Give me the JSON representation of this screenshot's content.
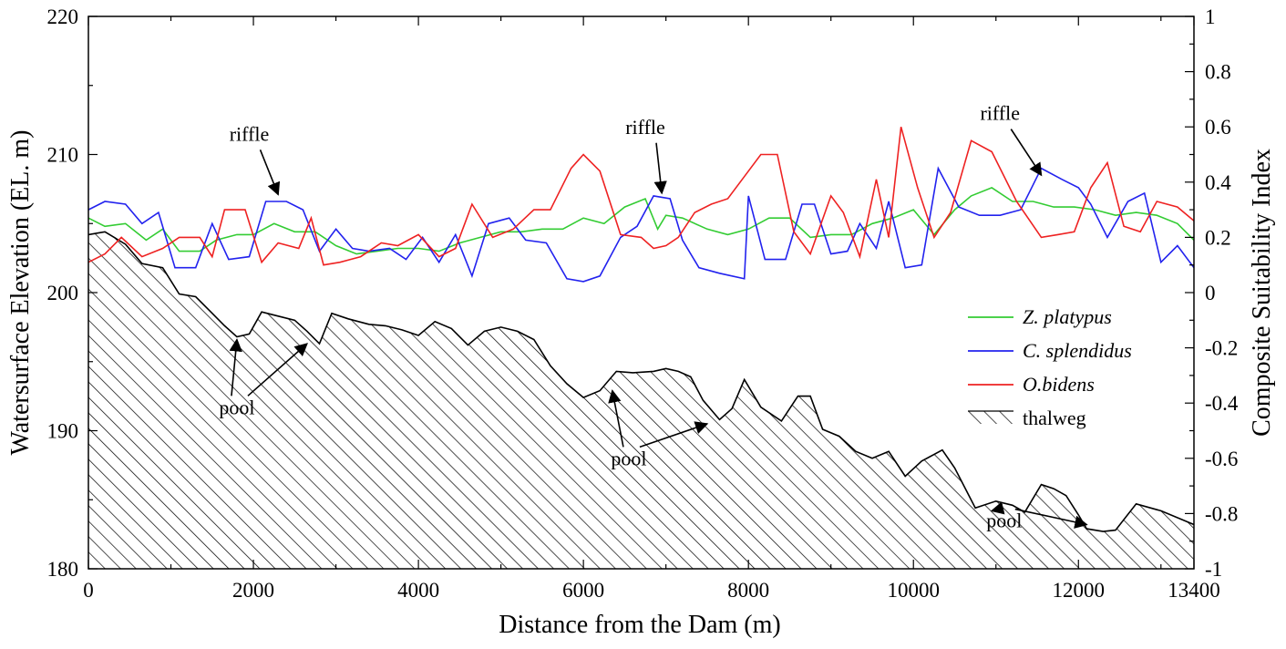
{
  "chart_data": {
    "type": "line",
    "xlabel": "Distance from the Dam (m)",
    "ylabel_left": "Watersurface Elevation (EL. m)",
    "ylabel_right": "Composite Suitability Index",
    "xlim": [
      0,
      13400
    ],
    "ylim_left": [
      180,
      220
    ],
    "ylim_right": [
      -1,
      1
    ],
    "x_ticks": [
      "0",
      "2000",
      "4000",
      "6000",
      "8000",
      "10000",
      "12000",
      "13400"
    ],
    "y_left_ticks": [
      "180",
      "190",
      "200",
      "210",
      "220"
    ],
    "y_right_ticks": [
      "-1",
      "-0.8",
      "-0.6",
      "-0.4",
      "-0.2",
      "0",
      "0.2",
      "0.4",
      "0.6",
      "0.8",
      "1"
    ],
    "legend_position": "right-middle",
    "colors": {
      "z_platypus": "#33cc33",
      "c_splendidus": "#2222ee",
      "o_bidens": "#ee2222",
      "thalweg": "#000000"
    },
    "legend": [
      {
        "key": "z_platypus",
        "label": "Z. platypus",
        "italic": true,
        "kind": "line"
      },
      {
        "key": "c_splendidus",
        "label": "C. splendidus",
        "italic": true,
        "kind": "line"
      },
      {
        "key": "o_bidens",
        "label": "O.bidens",
        "italic": true,
        "kind": "line"
      },
      {
        "key": "thalweg",
        "label": "thalweg",
        "italic": false,
        "kind": "hatch"
      }
    ],
    "thalweg": {
      "name": "thalweg",
      "axis": "left",
      "x": [
        0,
        200,
        450,
        650,
        900,
        1100,
        1300,
        1500,
        1650,
        1800,
        1950,
        2100,
        2300,
        2500,
        2650,
        2800,
        2950,
        3150,
        3400,
        3600,
        3800,
        4000,
        4200,
        4400,
        4600,
        4800,
        5000,
        5200,
        5400,
        5600,
        5800,
        6000,
        6200,
        6400,
        6600,
        6850,
        7000,
        7150,
        7300,
        7450,
        7650,
        7800,
        7950,
        8150,
        8400,
        8600,
        8750,
        8900,
        9100,
        9300,
        9500,
        9700,
        9900,
        10100,
        10350,
        10500,
        10750,
        11000,
        11200,
        11350,
        11550,
        11700,
        11850,
        12000,
        12100,
        12300,
        12450,
        12700,
        13000,
        13400
      ],
      "y": [
        204.2,
        204.4,
        203.5,
        202.1,
        201.8,
        199.9,
        199.7,
        198.5,
        197.6,
        196.8,
        197.0,
        198.6,
        198.3,
        198.0,
        197.2,
        196.3,
        198.5,
        198.1,
        197.7,
        197.6,
        197.3,
        196.9,
        197.9,
        197.4,
        196.2,
        197.2,
        197.5,
        197.2,
        196.6,
        194.7,
        193.4,
        192.4,
        192.9,
        194.3,
        194.2,
        194.3,
        194.5,
        194.3,
        193.9,
        192.2,
        190.8,
        191.6,
        193.7,
        191.7,
        190.7,
        192.5,
        192.5,
        190.1,
        189.6,
        188.5,
        188.0,
        188.5,
        186.7,
        187.8,
        188.6,
        187.3,
        184.4,
        184.9,
        184.6,
        184.1,
        186.1,
        185.8,
        185.3,
        183.9,
        182.9,
        182.7,
        182.8,
        184.7,
        184.2,
        183.2
      ]
    },
    "series": [
      {
        "key": "z_platypus",
        "name": "Z. platypus",
        "axis": "right",
        "x": [
          0,
          200,
          450,
          700,
          900,
          1100,
          1350,
          1550,
          1800,
          2000,
          2250,
          2500,
          2750,
          3000,
          3250,
          3500,
          3750,
          4000,
          4250,
          4500,
          4750,
          5000,
          5250,
          5500,
          5750,
          6000,
          6250,
          6500,
          6750,
          6900,
          7000,
          7200,
          7500,
          7750,
          8000,
          8250,
          8500,
          8750,
          9000,
          9250,
          9500,
          9750,
          10000,
          10250,
          10500,
          10700,
          10950,
          11200,
          11450,
          11700,
          11950,
          12200,
          12450,
          12700,
          12950,
          13200,
          13400
        ],
        "y": [
          0.27,
          0.24,
          0.25,
          0.19,
          0.23,
          0.15,
          0.15,
          0.19,
          0.21,
          0.21,
          0.25,
          0.22,
          0.22,
          0.17,
          0.14,
          0.15,
          0.16,
          0.16,
          0.15,
          0.18,
          0.2,
          0.22,
          0.22,
          0.23,
          0.23,
          0.27,
          0.25,
          0.31,
          0.34,
          0.23,
          0.28,
          0.27,
          0.23,
          0.21,
          0.23,
          0.27,
          0.27,
          0.2,
          0.21,
          0.21,
          0.25,
          0.27,
          0.3,
          0.21,
          0.3,
          0.35,
          0.38,
          0.33,
          0.33,
          0.31,
          0.31,
          0.3,
          0.28,
          0.29,
          0.28,
          0.25,
          0.19
        ]
      },
      {
        "key": "c_splendidus",
        "name": "C. splendidus",
        "axis": "right",
        "x": [
          0,
          200,
          450,
          650,
          850,
          1050,
          1300,
          1500,
          1700,
          1950,
          2150,
          2400,
          2600,
          2800,
          3000,
          3200,
          3400,
          3650,
          3850,
          4050,
          4250,
          4450,
          4650,
          4850,
          5100,
          5300,
          5550,
          5800,
          6000,
          6200,
          6450,
          6650,
          6850,
          7050,
          7200,
          7400,
          7650,
          7950,
          8000,
          8200,
          8450,
          8650,
          8800,
          9000,
          9200,
          9350,
          9550,
          9700,
          9900,
          10100,
          10300,
          10550,
          10800,
          11050,
          11300,
          11550,
          11800,
          12000,
          12150,
          12350,
          12600,
          12800,
          13000,
          13200,
          13400
        ],
        "y": [
          0.3,
          0.33,
          0.32,
          0.25,
          0.29,
          0.09,
          0.09,
          0.25,
          0.12,
          0.13,
          0.33,
          0.33,
          0.3,
          0.15,
          0.23,
          0.16,
          0.15,
          0.16,
          0.12,
          0.2,
          0.11,
          0.21,
          0.06,
          0.25,
          0.27,
          0.19,
          0.18,
          0.05,
          0.04,
          0.06,
          0.2,
          0.24,
          0.35,
          0.34,
          0.19,
          0.09,
          0.07,
          0.05,
          0.35,
          0.12,
          0.12,
          0.32,
          0.32,
          0.14,
          0.15,
          0.25,
          0.16,
          0.33,
          0.09,
          0.1,
          0.45,
          0.31,
          0.28,
          0.28,
          0.3,
          0.45,
          0.41,
          0.38,
          0.32,
          0.2,
          0.33,
          0.36,
          0.11,
          0.17,
          0.09
        ]
      },
      {
        "key": "o_bidens",
        "name": "O.bidens",
        "axis": "right",
        "x": [
          0,
          200,
          400,
          650,
          900,
          1100,
          1350,
          1500,
          1650,
          1900,
          2100,
          2300,
          2550,
          2700,
          2850,
          3050,
          3300,
          3550,
          3750,
          4000,
          4250,
          4450,
          4650,
          4900,
          5150,
          5400,
          5600,
          5850,
          6000,
          6200,
          6450,
          6700,
          6850,
          7000,
          7150,
          7350,
          7550,
          7750,
          7950,
          8150,
          8350,
          8550,
          8750,
          9000,
          9150,
          9350,
          9550,
          9700,
          9850,
          10050,
          10250,
          10450,
          10700,
          10950,
          11250,
          11550,
          11750,
          11950,
          12150,
          12350,
          12550,
          12750,
          12950,
          13200,
          13400
        ],
        "y": [
          0.11,
          0.14,
          0.2,
          0.13,
          0.16,
          0.2,
          0.2,
          0.13,
          0.3,
          0.3,
          0.11,
          0.18,
          0.16,
          0.27,
          0.1,
          0.11,
          0.13,
          0.18,
          0.17,
          0.21,
          0.13,
          0.16,
          0.32,
          0.2,
          0.23,
          0.3,
          0.3,
          0.45,
          0.5,
          0.44,
          0.21,
          0.2,
          0.16,
          0.17,
          0.2,
          0.29,
          0.32,
          0.34,
          0.42,
          0.5,
          0.5,
          0.22,
          0.14,
          0.35,
          0.29,
          0.13,
          0.41,
          0.2,
          0.6,
          0.38,
          0.2,
          0.29,
          0.55,
          0.51,
          0.33,
          0.2,
          0.21,
          0.22,
          0.38,
          0.47,
          0.24,
          0.22,
          0.33,
          0.31,
          0.26
        ]
      }
    ],
    "annotations": [
      {
        "text": "riffle",
        "x": 1950,
        "y_left": 211.0,
        "arrow_to": [
          2300,
          207.1
        ]
      },
      {
        "text": "riffle",
        "x": 6750,
        "y_left": 211.5,
        "arrow_to": [
          6950,
          207.2
        ]
      },
      {
        "text": "riffle",
        "x": 11050,
        "y_left": 212.5,
        "arrow_to": [
          11550,
          208.5
        ]
      },
      {
        "text": "pool",
        "x": 1800,
        "y_left": 191.2,
        "arrow_to": [
          [
            1800,
            196.6
          ],
          [
            2650,
            196.3
          ]
        ]
      },
      {
        "text": "pool",
        "x": 6550,
        "y_left": 187.5,
        "arrow_to": [
          [
            6350,
            192.9
          ],
          [
            7500,
            190.5
          ]
        ]
      },
      {
        "text": "pool",
        "x": 11100,
        "y_left": 183.0,
        "arrow_to": [
          [
            10950,
            184.2
          ],
          [
            12100,
            183.2
          ]
        ]
      }
    ]
  }
}
